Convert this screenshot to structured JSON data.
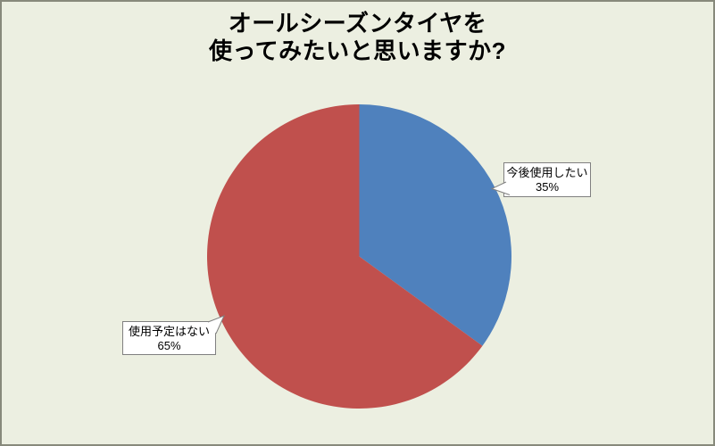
{
  "chart_data": {
    "type": "pie",
    "title": "オールシーズンタイヤを\n使ってみたいと思いますか?",
    "categories": [
      "今後使用したい",
      "使用予定はない"
    ],
    "values": [
      35,
      65
    ],
    "colors": [
      "#4F81BD",
      "#C0504D"
    ],
    "start_angle_deg": 0,
    "direction": "clockwise",
    "legend_position": "none",
    "background_color": "#ECEFE1",
    "frame_border_color": "#87897B",
    "callouts": [
      {
        "label": "今後使用したい",
        "percent": "35%"
      },
      {
        "label": "使用予定はない",
        "percent": "65%"
      }
    ]
  }
}
